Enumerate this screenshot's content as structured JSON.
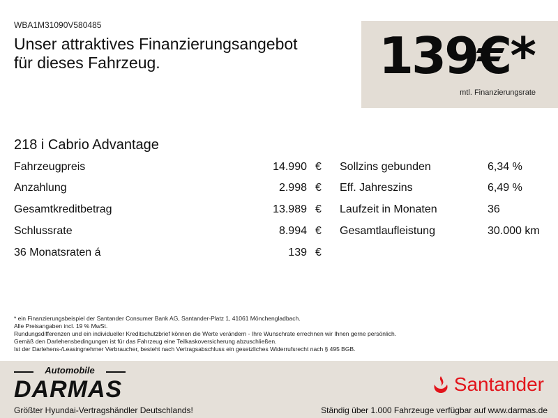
{
  "vin": "WBA1M31090V580485",
  "headline": [
    "Unser attraktives Finanzierungsangebot",
    "für dieses Fahrzeug."
  ],
  "price": {
    "amount": "139€*",
    "label": "mtl. Finanzierungsrate"
  },
  "model": "218 i Cabrio  Advantage",
  "left_rows": [
    {
      "label": "Fahrzeugpreis",
      "value": "14.990",
      "currency": "€"
    },
    {
      "label": "Anzahlung",
      "value": "2.998",
      "currency": "€"
    },
    {
      "label": "Gesamtkreditbetrag",
      "value": "13.989",
      "currency": "€"
    },
    {
      "label": "Schlussrate",
      "value": "8.994",
      "currency": "€"
    },
    {
      "label": "36 Monatsraten á",
      "value": "139",
      "currency": "€"
    }
  ],
  "right_rows": [
    {
      "label": "Sollzins gebunden",
      "value": "6,34 %"
    },
    {
      "label": "Eff. Jahreszins",
      "value": "6,49 %"
    },
    {
      "label": "Laufzeit in Monaten",
      "value": "36"
    },
    {
      "label": "Gesamtlaufleistung",
      "value": "30.000 km"
    }
  ],
  "notes": [
    "* ein Finanzierungsbeispiel der Santander Consumer Bank AG, Santander-Platz 1, 41061 Mönchengladbach.",
    "Alle Preisangaben incl. 19 % MwSt.",
    "Rundungsdifferenzen und ein individueller Kreditschutzbrief können die Werte verändern - Ihre Wunschrate errechnen wir Ihnen gerne persönlich.",
    "Gemäß den Darlehensbedingungen ist für das Fahrzeug eine Teilkaskoversicherung abzuschließen.",
    "Ist der Darlehens-/Leasingnehmer Verbraucher, besteht nach Vertragsabschluss ein gesetzliches Widerrufsrecht nach § 495 BGB."
  ],
  "footer": {
    "dealer_logo_top": "Automobile",
    "dealer_logo": "DARMAS",
    "bank_logo": "Santander",
    "tagline_left": "Größter Hyundai-Vertragshändler Deutschlands!",
    "tagline_right": "Ständig über 1.000 Fahrzeuge verfügbar auf www.darmas.de"
  },
  "colors": {
    "price_box": "#e3ddd5",
    "footer_bg": "#e5e0d9",
    "santander_red": "#e2141b"
  }
}
